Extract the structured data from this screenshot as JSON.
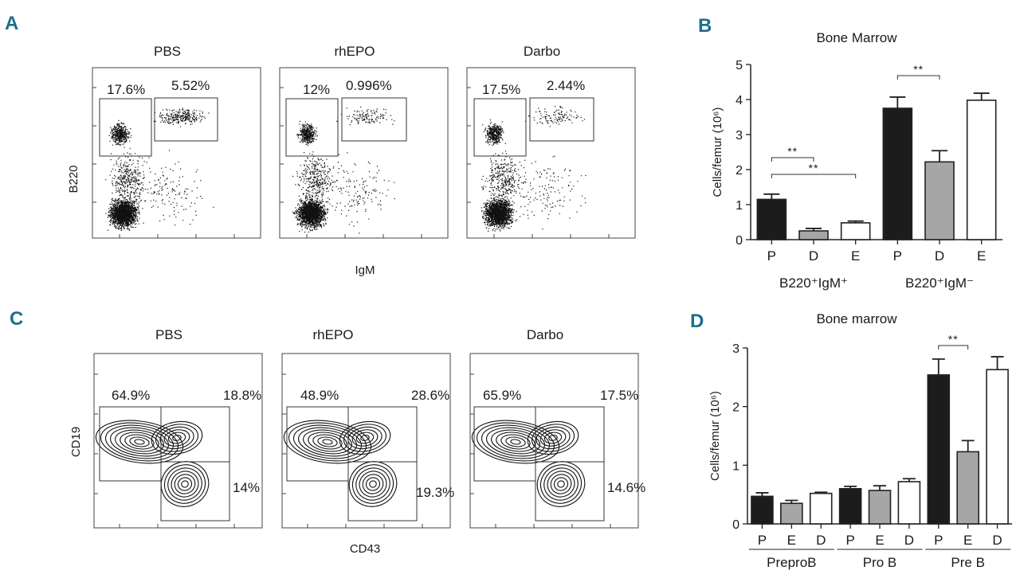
{
  "panels": {
    "A": {
      "label": "A",
      "titles": [
        "PBS",
        "rhEPO",
        "Darbo"
      ],
      "gates": [
        [
          "17.6%",
          "5.52%"
        ],
        [
          "12%",
          "0.996%"
        ],
        [
          "17.5%",
          "2.44%"
        ]
      ],
      "ylabel": "B220",
      "xlabel": "IgM"
    },
    "C": {
      "label": "C",
      "titles": [
        "PBS",
        "rhEPO",
        "Darbo"
      ],
      "gates": [
        [
          "64.9%",
          "18.8%",
          "14%"
        ],
        [
          "48.9%",
          "28.6%",
          "19.3%"
        ],
        [
          "65.9%",
          "17.5%",
          "14.6%"
        ]
      ],
      "ylabel": "CD19",
      "xlabel": "CD43"
    },
    "B": {
      "label": "B"
    },
    "D": {
      "label": "D"
    }
  },
  "chart_data": [
    {
      "panel": "B",
      "type": "bar",
      "title": "Bone Marrow",
      "ylabel": "Cells/femur (10⁶)",
      "ylim": [
        0,
        5
      ],
      "yticks": [
        "0",
        "1",
        "2",
        "3",
        "4",
        "5"
      ],
      "categories": [
        "P",
        "D",
        "E",
        "P",
        "D",
        "E"
      ],
      "groups": [
        {
          "label": "B220⁺IgM⁺",
          "indices": [
            0,
            1,
            2
          ]
        },
        {
          "label": "B220⁺IgM⁻",
          "indices": [
            3,
            4,
            5
          ]
        }
      ],
      "values": [
        1.15,
        0.25,
        0.48,
        3.75,
        2.22,
        3.98
      ],
      "errors": [
        0.15,
        0.07,
        0.05,
        0.32,
        0.32,
        0.2
      ],
      "fills": [
        "#1c1c1c",
        "#a6a6a6",
        "#ffffff",
        "#1c1c1c",
        "#a6a6a6",
        "#ffffff"
      ],
      "significance": [
        {
          "from": 0,
          "to": 1,
          "text": "**"
        },
        {
          "from": 0,
          "to": 2,
          "text": "**"
        },
        {
          "from": 3,
          "to": 4,
          "text": "**"
        }
      ]
    },
    {
      "panel": "D",
      "type": "bar",
      "title": "Bone marrow",
      "ylabel": "Cells/femur (10⁶)",
      "ylim": [
        0,
        3
      ],
      "yticks": [
        "0",
        "1",
        "2",
        "3"
      ],
      "categories": [
        "P",
        "E",
        "D",
        "P",
        "E",
        "D",
        "P",
        "E",
        "D"
      ],
      "groups": [
        {
          "label": "PreproB",
          "indices": [
            0,
            1,
            2
          ]
        },
        {
          "label": "Pro B",
          "indices": [
            3,
            4,
            5
          ]
        },
        {
          "label": "Pre B",
          "indices": [
            6,
            7,
            8
          ]
        }
      ],
      "values": [
        0.47,
        0.35,
        0.52,
        0.6,
        0.57,
        0.72,
        2.54,
        1.23,
        2.63
      ],
      "errors": [
        0.06,
        0.05,
        0.02,
        0.04,
        0.08,
        0.05,
        0.27,
        0.19,
        0.22
      ],
      "fills": [
        "#1c1c1c",
        "#a6a6a6",
        "#ffffff",
        "#1c1c1c",
        "#a6a6a6",
        "#ffffff",
        "#1c1c1c",
        "#a6a6a6",
        "#ffffff"
      ],
      "significance": [
        {
          "from": 6,
          "to": 7,
          "text": "**"
        }
      ]
    }
  ]
}
